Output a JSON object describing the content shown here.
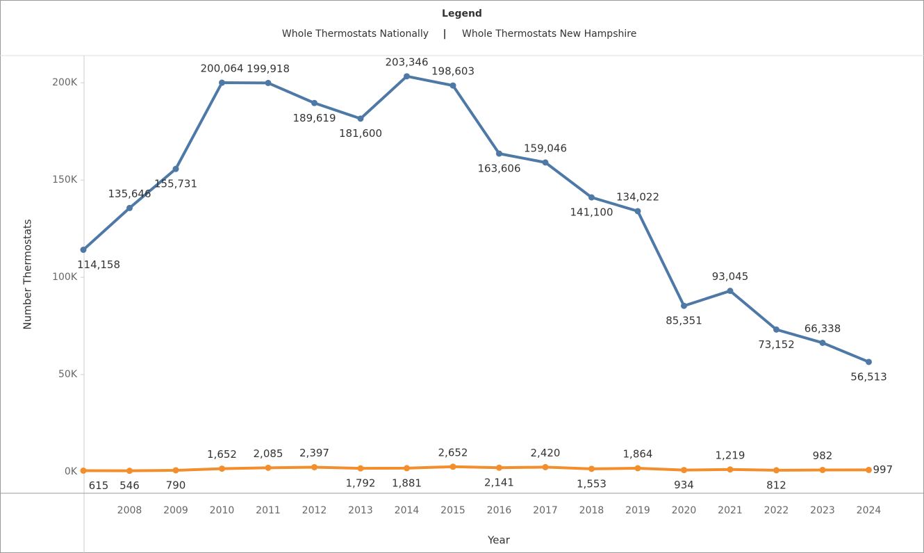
{
  "chart_data": {
    "type": "line",
    "legend_title": "Legend",
    "x_label": "Year",
    "y_label": "Number Thermostats",
    "categories": [
      null,
      "2008",
      "2009",
      "2010",
      "2011",
      "2012",
      "2013",
      "2014",
      "2015",
      "2016",
      "2017",
      "2018",
      "2019",
      "2020",
      "2021",
      "2022",
      "2023",
      "2024"
    ],
    "series": [
      {
        "name": "Whole Thermostats Nationally",
        "color": "#4e79a7",
        "values": [
          114158,
          135646,
          155731,
          200064,
          199918,
          189619,
          181600,
          203346,
          198603,
          163606,
          159046,
          141100,
          134022,
          85351,
          93045,
          73152,
          66338,
          56513
        ],
        "value_labels": [
          "114,158",
          "135,646",
          "155,731",
          "200,064",
          "199,918",
          "189,619",
          "181,600",
          "203,346",
          "198,603",
          "163,606",
          "159,046",
          "141,100",
          "134,022",
          "85,351",
          "93,045",
          "73,152",
          "66,338",
          "56,513"
        ]
      },
      {
        "name": "Whole Thermostats New Hampshire",
        "color": "#f28e2b",
        "values": [
          615,
          546,
          790,
          1652,
          2085,
          2397,
          1792,
          1881,
          2652,
          2141,
          2420,
          1553,
          1864,
          934,
          1219,
          812,
          982,
          997
        ],
        "value_labels": [
          "615",
          "546",
          "790",
          "1,652",
          "2,085",
          "2,397",
          "1,792",
          "1,881",
          "2,652",
          "2,141",
          "2,420",
          "1,553",
          "1,864",
          "934",
          "1,219",
          "812",
          "982",
          "997"
        ]
      }
    ],
    "ylim": [
      -11000,
      214000
    ],
    "yticks": [
      {
        "value": 0,
        "label": "0K"
      },
      {
        "value": 50000,
        "label": "50K"
      },
      {
        "value": 100000,
        "label": "100K"
      },
      {
        "value": 150000,
        "label": "150K"
      },
      {
        "value": 200000,
        "label": "200K"
      }
    ],
    "grid": false
  }
}
